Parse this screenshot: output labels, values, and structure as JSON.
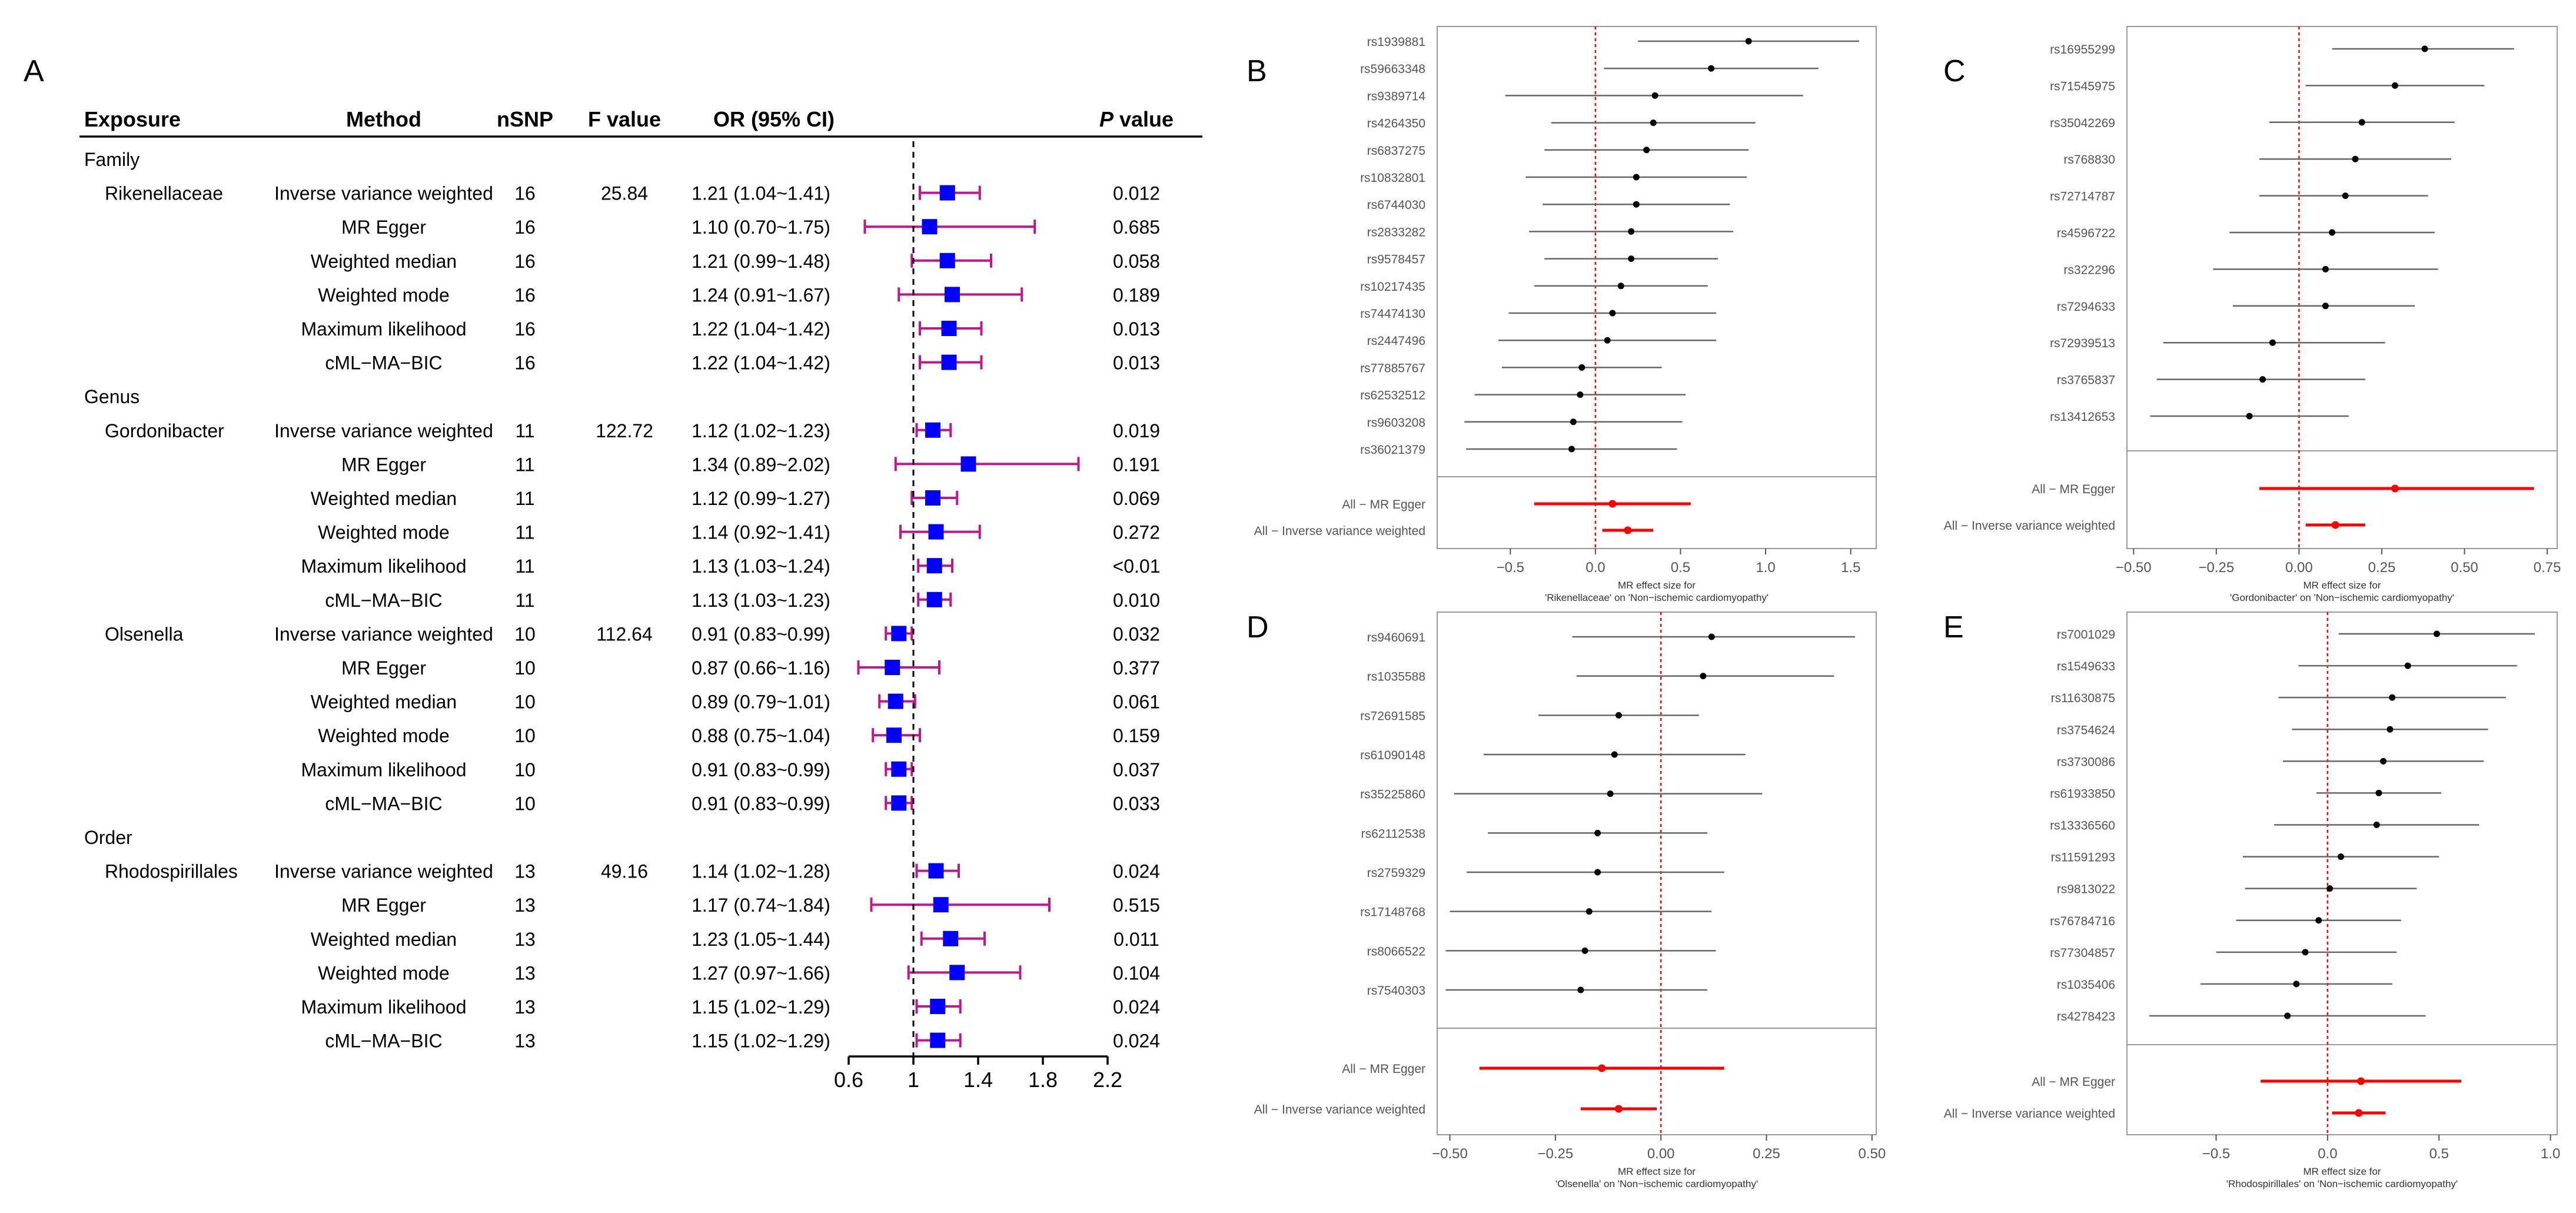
{
  "panel_a": {
    "label": "A",
    "headers": {
      "exposure": "Exposure",
      "method": "Method",
      "nsnp": "nSNP",
      "fvalue": "F value",
      "or": "OR (95% CI)",
      "p_italic": "P",
      "p_rest": " value"
    },
    "axis_ticks": [
      "0.6",
      "1",
      "1.4",
      "1.8",
      "2.2"
    ],
    "rows": [
      {
        "kind": "section",
        "text": "Family"
      },
      {
        "kind": "data",
        "exposure": "Rikenellaceae",
        "method": "Inverse variance weighted",
        "nsnp": "16",
        "fvalue": "25.84",
        "or_text": "1.21 (1.04~1.41)",
        "p": "0.012"
      },
      {
        "kind": "data",
        "exposure": "",
        "method": "MR Egger",
        "nsnp": "16",
        "fvalue": "",
        "or_text": "1.10 (0.70~1.75)",
        "p": "0.685"
      },
      {
        "kind": "data",
        "exposure": "",
        "method": "Weighted median",
        "nsnp": "16",
        "fvalue": "",
        "or_text": "1.21 (0.99~1.48)",
        "p": "0.058"
      },
      {
        "kind": "data",
        "exposure": "",
        "method": "Weighted mode",
        "nsnp": "16",
        "fvalue": "",
        "or_text": "1.24 (0.91~1.67)",
        "p": "0.189"
      },
      {
        "kind": "data",
        "exposure": "",
        "method": "Maximum likelihood",
        "nsnp": "16",
        "fvalue": "",
        "or_text": "1.22 (1.04~1.42)",
        "p": "0.013"
      },
      {
        "kind": "data",
        "exposure": "",
        "method": "cML−MA−BIC",
        "nsnp": "16",
        "fvalue": "",
        "or_text": "1.22 (1.04~1.42)",
        "p": "0.013"
      },
      {
        "kind": "section",
        "text": "Genus"
      },
      {
        "kind": "data",
        "exposure": "Gordonibacter",
        "method": "Inverse variance weighted",
        "nsnp": "11",
        "fvalue": "122.72",
        "or_text": "1.12 (1.02~1.23)",
        "p": "0.019"
      },
      {
        "kind": "data",
        "exposure": "",
        "method": "MR Egger",
        "nsnp": "11",
        "fvalue": "",
        "or_text": "1.34 (0.89~2.02)",
        "p": "0.191"
      },
      {
        "kind": "data",
        "exposure": "",
        "method": "Weighted median",
        "nsnp": "11",
        "fvalue": "",
        "or_text": "1.12 (0.99~1.27)",
        "p": "0.069"
      },
      {
        "kind": "data",
        "exposure": "",
        "method": "Weighted mode",
        "nsnp": "11",
        "fvalue": "",
        "or_text": "1.14 (0.92~1.41)",
        "p": "0.272"
      },
      {
        "kind": "data",
        "exposure": "",
        "method": "Maximum likelihood",
        "nsnp": "11",
        "fvalue": "",
        "or_text": "1.13 (1.03~1.24)",
        "p": "<0.01"
      },
      {
        "kind": "data",
        "exposure": "",
        "method": "cML−MA−BIC",
        "nsnp": "11",
        "fvalue": "",
        "or_text": "1.13 (1.03~1.23)",
        "p": "0.010"
      },
      {
        "kind": "data",
        "exposure": "Olsenella",
        "method": "Inverse variance weighted",
        "nsnp": "10",
        "fvalue": "112.64",
        "or_text": "0.91 (0.83~0.99)",
        "p": "0.032"
      },
      {
        "kind": "data",
        "exposure": "",
        "method": "MR Egger",
        "nsnp": "10",
        "fvalue": "",
        "or_text": "0.87 (0.66~1.16)",
        "p": "0.377"
      },
      {
        "kind": "data",
        "exposure": "",
        "method": "Weighted median",
        "nsnp": "10",
        "fvalue": "",
        "or_text": "0.89 (0.79~1.01)",
        "p": "0.061"
      },
      {
        "kind": "data",
        "exposure": "",
        "method": "Weighted mode",
        "nsnp": "10",
        "fvalue": "",
        "or_text": "0.88 (0.75~1.04)",
        "p": "0.159"
      },
      {
        "kind": "data",
        "exposure": "",
        "method": "Maximum likelihood",
        "nsnp": "10",
        "fvalue": "",
        "or_text": "0.91 (0.83~0.99)",
        "p": "0.037"
      },
      {
        "kind": "data",
        "exposure": "",
        "method": "cML−MA−BIC",
        "nsnp": "10",
        "fvalue": "",
        "or_text": "0.91 (0.83~0.99)",
        "p": "0.033"
      },
      {
        "kind": "section",
        "text": "Order"
      },
      {
        "kind": "data",
        "exposure": "Rhodospirillales",
        "method": "Inverse variance weighted",
        "nsnp": "13",
        "fvalue": "49.16",
        "or_text": "1.14 (1.02~1.28)",
        "p": "0.024"
      },
      {
        "kind": "data",
        "exposure": "",
        "method": "MR Egger",
        "nsnp": "13",
        "fvalue": "",
        "or_text": "1.17 (0.74~1.84)",
        "p": "0.515"
      },
      {
        "kind": "data",
        "exposure": "",
        "method": "Weighted median",
        "nsnp": "13",
        "fvalue": "",
        "or_text": "1.23 (1.05~1.44)",
        "p": "0.011"
      },
      {
        "kind": "data",
        "exposure": "",
        "method": "Weighted mode",
        "nsnp": "13",
        "fvalue": "",
        "or_text": "1.27 (0.97~1.66)",
        "p": "0.104"
      },
      {
        "kind": "data",
        "exposure": "",
        "method": "Maximum likelihood",
        "nsnp": "13",
        "fvalue": "",
        "or_text": "1.15 (1.02~1.29)",
        "p": "0.024"
      },
      {
        "kind": "data",
        "exposure": "",
        "method": "cML−MA−BIC",
        "nsnp": "13",
        "fvalue": "",
        "or_text": "1.15 (1.02~1.29)",
        "p": "0.024"
      }
    ]
  },
  "colors": {
    "square": "#0000ff",
    "whisker": "#c2148e",
    "line": "#000000",
    "snp_ci": "#666666",
    "snp_point": "#000000",
    "summary": "#ff0000",
    "refline": "#ff0000",
    "frame": "#999999",
    "label": "#555555"
  },
  "chart_data": [
    {
      "panel": "A",
      "type": "forest",
      "xlim": [
        0.6,
        2.2
      ],
      "ref_value": 1,
      "ticks": [
        0.6,
        1,
        1.4,
        1.8,
        2.2
      ],
      "series": [
        {
          "name": "Rikenellaceae",
          "group": "Family",
          "or": [
            1.21,
            1.1,
            1.21,
            1.24,
            1.22,
            1.22
          ],
          "lo": [
            1.04,
            0.7,
            0.99,
            0.91,
            1.04,
            1.04
          ],
          "hi": [
            1.41,
            1.75,
            1.48,
            1.67,
            1.42,
            1.42
          ]
        },
        {
          "name": "Gordonibacter",
          "group": "Genus",
          "or": [
            1.12,
            1.34,
            1.12,
            1.14,
            1.13,
            1.13
          ],
          "lo": [
            1.02,
            0.89,
            0.99,
            0.92,
            1.03,
            1.03
          ],
          "hi": [
            1.23,
            2.02,
            1.27,
            1.41,
            1.24,
            1.23
          ]
        },
        {
          "name": "Olsenella",
          "group": "Genus",
          "or": [
            0.91,
            0.87,
            0.89,
            0.88,
            0.91,
            0.91
          ],
          "lo": [
            0.83,
            0.66,
            0.79,
            0.75,
            0.83,
            0.83
          ],
          "hi": [
            0.99,
            1.16,
            1.01,
            1.04,
            0.99,
            0.99
          ]
        },
        {
          "name": "Rhodospirillales",
          "group": "Order",
          "or": [
            1.14,
            1.17,
            1.23,
            1.27,
            1.15,
            1.15
          ],
          "lo": [
            1.02,
            0.74,
            1.05,
            0.97,
            1.02,
            1.02
          ],
          "hi": [
            1.28,
            1.84,
            1.44,
            1.66,
            1.29,
            1.29
          ]
        }
      ],
      "categories": [
        "Inverse variance weighted",
        "MR Egger",
        "Weighted median",
        "Weighted mode",
        "Maximum likelihood",
        "cML−MA−BIC"
      ]
    },
    {
      "panel": "B",
      "type": "forest",
      "title": "MR effect size for",
      "xlabel": "'Rikenellaceae' on 'Non−ischemic cardiomyopathy'",
      "xlim": [
        -0.93,
        1.65
      ],
      "ticks": [
        -0.5,
        0.0,
        0.5,
        1.0,
        1.5
      ],
      "tick_labels": [
        "−0.5",
        "0.0",
        "0.5",
        "1.0",
        "1.5"
      ],
      "snps": [
        {
          "name": "rs1939881",
          "b": 0.9,
          "lo": 0.25,
          "hi": 1.55
        },
        {
          "name": "rs59663348",
          "b": 0.68,
          "lo": 0.05,
          "hi": 1.31
        },
        {
          "name": "rs9389714",
          "b": 0.35,
          "lo": -0.53,
          "hi": 1.22
        },
        {
          "name": "rs4264350",
          "b": 0.34,
          "lo": -0.26,
          "hi": 0.94
        },
        {
          "name": "rs6837275",
          "b": 0.3,
          "lo": -0.3,
          "hi": 0.9
        },
        {
          "name": "rs10832801",
          "b": 0.24,
          "lo": -0.41,
          "hi": 0.89
        },
        {
          "name": "rs6744030",
          "b": 0.24,
          "lo": -0.31,
          "hi": 0.79
        },
        {
          "name": "rs2833282",
          "b": 0.21,
          "lo": -0.39,
          "hi": 0.81
        },
        {
          "name": "rs9578457",
          "b": 0.21,
          "lo": -0.3,
          "hi": 0.72
        },
        {
          "name": "rs10217435",
          "b": 0.15,
          "lo": -0.36,
          "hi": 0.66
        },
        {
          "name": "rs74474130",
          "b": 0.1,
          "lo": -0.51,
          "hi": 0.71
        },
        {
          "name": "rs2447496",
          "b": 0.07,
          "lo": -0.57,
          "hi": 0.71
        },
        {
          "name": "rs77885767",
          "b": -0.08,
          "lo": -0.55,
          "hi": 0.39
        },
        {
          "name": "rs62532512",
          "b": -0.09,
          "lo": -0.71,
          "hi": 0.53
        },
        {
          "name": "rs9603208",
          "b": -0.13,
          "lo": -0.77,
          "hi": 0.51
        },
        {
          "name": "rs36021379",
          "b": -0.14,
          "lo": -0.76,
          "hi": 0.48
        }
      ],
      "summary": [
        {
          "name": "All − MR Egger",
          "b": 0.1,
          "lo": -0.36,
          "hi": 0.56
        },
        {
          "name": "All − Inverse variance weighted",
          "b": 0.19,
          "lo": 0.04,
          "hi": 0.34
        }
      ]
    },
    {
      "panel": "C",
      "type": "forest",
      "title": "MR effect size for",
      "xlabel": "'Gordonibacter' on 'Non−ischemic cardiomyopathy'",
      "xlim": [
        -0.52,
        0.78
      ],
      "ticks": [
        -0.5,
        -0.25,
        0.0,
        0.25,
        0.5,
        0.75
      ],
      "tick_labels": [
        "−0.50",
        "−0.25",
        "0.00",
        "0.25",
        "0.50",
        "0.75"
      ],
      "snps": [
        {
          "name": "rs16955299",
          "b": 0.38,
          "lo": 0.1,
          "hi": 0.65
        },
        {
          "name": "rs71545975",
          "b": 0.29,
          "lo": 0.02,
          "hi": 0.56
        },
        {
          "name": "rs35042269",
          "b": 0.19,
          "lo": -0.09,
          "hi": 0.47
        },
        {
          "name": "rs768830",
          "b": 0.17,
          "lo": -0.12,
          "hi": 0.46
        },
        {
          "name": "rs72714787",
          "b": 0.14,
          "lo": -0.12,
          "hi": 0.39
        },
        {
          "name": "rs4596722",
          "b": 0.1,
          "lo": -0.21,
          "hi": 0.41
        },
        {
          "name": "rs322296",
          "b": 0.08,
          "lo": -0.26,
          "hi": 0.42
        },
        {
          "name": "rs7294633",
          "b": 0.08,
          "lo": -0.2,
          "hi": 0.35
        },
        {
          "name": "rs72939513",
          "b": -0.08,
          "lo": -0.41,
          "hi": 0.26
        },
        {
          "name": "rs3765837",
          "b": -0.11,
          "lo": -0.43,
          "hi": 0.2
        },
        {
          "name": "rs13412653",
          "b": -0.15,
          "lo": -0.45,
          "hi": 0.15
        }
      ],
      "summary": [
        {
          "name": "All − MR Egger",
          "b": 0.29,
          "lo": -0.12,
          "hi": 0.71
        },
        {
          "name": "All − Inverse variance weighted",
          "b": 0.11,
          "lo": 0.02,
          "hi": 0.2
        }
      ]
    },
    {
      "panel": "D",
      "type": "forest",
      "title": "MR effect size for",
      "xlabel": "'Olsenella' on 'Non−ischemic cardiomyopathy'",
      "xlim": [
        -0.53,
        0.51
      ],
      "ticks": [
        -0.5,
        -0.25,
        0.0,
        0.25,
        0.5
      ],
      "tick_labels": [
        "−0.50",
        "−0.25",
        "0.00",
        "0.25",
        "0.50"
      ],
      "snps": [
        {
          "name": "rs9460691",
          "b": 0.12,
          "lo": -0.21,
          "hi": 0.46
        },
        {
          "name": "rs1035588",
          "b": 0.1,
          "lo": -0.2,
          "hi": 0.41
        },
        {
          "name": "rs72691585",
          "b": -0.1,
          "lo": -0.29,
          "hi": 0.09
        },
        {
          "name": "rs61090148",
          "b": -0.11,
          "lo": -0.42,
          "hi": 0.2
        },
        {
          "name": "rs35225860",
          "b": -0.12,
          "lo": -0.49,
          "hi": 0.24
        },
        {
          "name": "rs62112538",
          "b": -0.15,
          "lo": -0.41,
          "hi": 0.11
        },
        {
          "name": "rs2759329",
          "b": -0.15,
          "lo": -0.46,
          "hi": 0.15
        },
        {
          "name": "rs17148768",
          "b": -0.17,
          "lo": -0.5,
          "hi": 0.12
        },
        {
          "name": "rs8066522",
          "b": -0.18,
          "lo": -0.51,
          "hi": 0.13
        },
        {
          "name": "rs7540303",
          "b": -0.19,
          "lo": -0.51,
          "hi": 0.11
        }
      ],
      "summary": [
        {
          "name": "All − MR Egger",
          "b": -0.14,
          "lo": -0.43,
          "hi": 0.15
        },
        {
          "name": "All − Inverse variance weighted",
          "b": -0.1,
          "lo": -0.19,
          "hi": -0.01
        }
      ]
    },
    {
      "panel": "E",
      "type": "forest",
      "title": "MR effect size for",
      "xlabel": "'Rhodospirillales' on 'Non−ischemic cardiomyopathy'",
      "xlim": [
        -0.9,
        1.03
      ],
      "ticks": [
        -0.5,
        0.0,
        0.5,
        1.0
      ],
      "tick_labels": [
        "−0.5",
        "0.0",
        "0.5",
        "1.0"
      ],
      "snps": [
        {
          "name": "rs7001029",
          "b": 0.49,
          "lo": 0.05,
          "hi": 0.93
        },
        {
          "name": "rs1549633",
          "b": 0.36,
          "lo": -0.13,
          "hi": 0.85
        },
        {
          "name": "rs11630875",
          "b": 0.29,
          "lo": -0.22,
          "hi": 0.8
        },
        {
          "name": "rs3754624",
          "b": 0.28,
          "lo": -0.16,
          "hi": 0.72
        },
        {
          "name": "rs3730086",
          "b": 0.25,
          "lo": -0.2,
          "hi": 0.7
        },
        {
          "name": "rs61933850",
          "b": 0.23,
          "lo": -0.05,
          "hi": 0.51
        },
        {
          "name": "rs13336560",
          "b": 0.22,
          "lo": -0.24,
          "hi": 0.68
        },
        {
          "name": "rs11591293",
          "b": 0.06,
          "lo": -0.38,
          "hi": 0.5
        },
        {
          "name": "rs9813022",
          "b": 0.01,
          "lo": -0.37,
          "hi": 0.4
        },
        {
          "name": "rs76784716",
          "b": -0.04,
          "lo": -0.41,
          "hi": 0.33
        },
        {
          "name": "rs77304857",
          "b": -0.1,
          "lo": -0.5,
          "hi": 0.31
        },
        {
          "name": "rs1035406",
          "b": -0.14,
          "lo": -0.57,
          "hi": 0.29
        },
        {
          "name": "rs4278423",
          "b": -0.18,
          "lo": -0.8,
          "hi": 0.44
        }
      ],
      "summary": [
        {
          "name": "All − MR Egger",
          "b": 0.15,
          "lo": -0.3,
          "hi": 0.6
        },
        {
          "name": "All − Inverse variance weighted",
          "b": 0.14,
          "lo": 0.02,
          "hi": 0.26
        }
      ]
    }
  ]
}
